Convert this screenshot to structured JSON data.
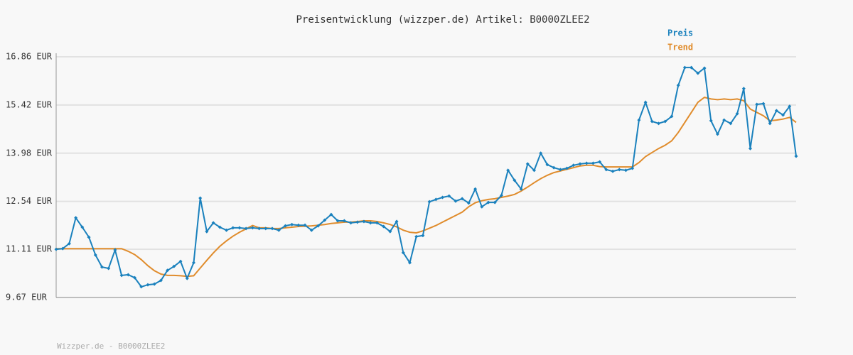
{
  "chart_data": {
    "type": "line",
    "title": "Preisentwicklung (wizzper.de) Artikel: B0000ZLEE2",
    "footer": "Wizzper.de - B0000ZLEE2",
    "ylim": [
      9.67,
      16.86
    ],
    "yticks": [
      {
        "value": 9.67,
        "label": "9.67 EUR"
      },
      {
        "value": 11.11,
        "label": "11.11 EUR"
      },
      {
        "value": 12.54,
        "label": "12.54 EUR"
      },
      {
        "value": 13.98,
        "label": "13.98 EUR"
      },
      {
        "value": 15.42,
        "label": "15.42 EUR"
      },
      {
        "value": 16.86,
        "label": "16.86 EUR"
      }
    ],
    "grid": true,
    "legend": "top-right",
    "series": [
      {
        "name": "Preis",
        "color": "#1a81bd",
        "markers": true,
        "values": [
          11.11,
          11.13,
          11.28,
          12.05,
          11.77,
          11.47,
          10.94,
          10.58,
          10.54,
          11.09,
          10.33,
          10.35,
          10.26,
          9.99,
          10.05,
          10.07,
          10.18,
          10.48,
          10.6,
          10.75,
          10.24,
          10.71,
          12.64,
          11.64,
          11.9,
          11.77,
          11.68,
          11.75,
          11.75,
          11.73,
          11.75,
          11.73,
          11.73,
          11.73,
          11.68,
          11.81,
          11.85,
          11.83,
          11.83,
          11.68,
          11.81,
          11.98,
          12.15,
          11.96,
          11.96,
          11.9,
          11.92,
          11.94,
          11.9,
          11.9,
          11.79,
          11.64,
          11.94,
          11.01,
          10.71,
          11.49,
          11.52,
          12.53,
          12.6,
          12.66,
          12.7,
          12.55,
          12.62,
          12.49,
          12.91,
          12.38,
          12.51,
          12.51,
          12.72,
          13.47,
          13.17,
          12.91,
          13.66,
          13.47,
          13.98,
          13.64,
          13.55,
          13.49,
          13.53,
          13.62,
          13.66,
          13.68,
          13.68,
          13.72,
          13.49,
          13.44,
          13.49,
          13.47,
          13.53,
          14.97,
          15.5,
          14.93,
          14.87,
          14.93,
          15.08,
          16.01,
          16.54,
          16.54,
          16.37,
          16.52,
          14.95,
          14.55,
          14.97,
          14.87,
          15.16,
          15.91,
          14.12,
          15.44,
          15.46,
          14.87,
          15.25,
          15.12,
          15.38,
          13.89
        ]
      },
      {
        "name": "Trend",
        "color": "#e08c2c",
        "markers": false,
        "values": [
          11.13,
          11.13,
          11.13,
          11.13,
          11.13,
          11.13,
          11.13,
          11.13,
          11.13,
          11.13,
          11.13,
          11.05,
          10.95,
          10.8,
          10.62,
          10.47,
          10.37,
          10.33,
          10.33,
          10.32,
          10.3,
          10.32,
          10.55,
          10.78,
          11.0,
          11.2,
          11.36,
          11.5,
          11.62,
          11.72,
          11.82,
          11.75,
          11.75,
          11.73,
          11.73,
          11.75,
          11.77,
          11.79,
          11.8,
          11.81,
          11.83,
          11.85,
          11.88,
          11.9,
          11.92,
          11.92,
          11.94,
          11.96,
          11.96,
          11.94,
          11.9,
          11.85,
          11.78,
          11.68,
          11.62,
          11.6,
          11.66,
          11.74,
          11.82,
          11.92,
          12.02,
          12.12,
          12.22,
          12.38,
          12.5,
          12.56,
          12.6,
          12.62,
          12.66,
          12.7,
          12.75,
          12.85,
          12.97,
          13.1,
          13.22,
          13.32,
          13.4,
          13.45,
          13.5,
          13.55,
          13.6,
          13.62,
          13.62,
          13.58,
          13.57,
          13.57,
          13.57,
          13.57,
          13.57,
          13.7,
          13.88,
          14.0,
          14.12,
          14.22,
          14.35,
          14.6,
          14.9,
          15.2,
          15.5,
          15.65,
          15.6,
          15.58,
          15.6,
          15.58,
          15.6,
          15.55,
          15.3,
          15.2,
          15.1,
          14.95,
          14.97,
          15.0,
          15.05,
          14.9
        ]
      }
    ]
  }
}
